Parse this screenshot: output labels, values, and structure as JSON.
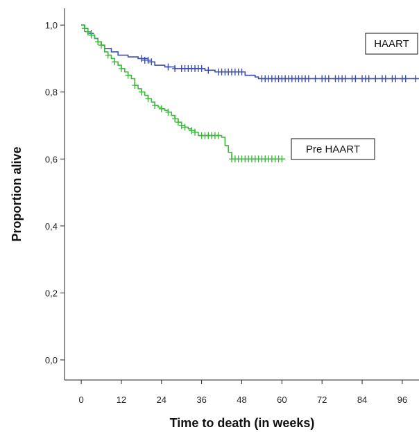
{
  "chart_data": {
    "type": "line",
    "title": "",
    "xlabel": "Time to death (in weeks)",
    "ylabel": "Proportion alive",
    "xlim": [
      -5,
      101
    ],
    "ylim": [
      -0.06,
      1.05
    ],
    "x_ticks": [
      0,
      12,
      24,
      36,
      48,
      60,
      72,
      84,
      96
    ],
    "x_tick_labels": [
      "0",
      "12",
      "24",
      "36",
      "48",
      "60",
      "72",
      "84",
      "96"
    ],
    "y_ticks": [
      0.0,
      0.2,
      0.4,
      0.6,
      0.8,
      1.0
    ],
    "y_tick_labels": [
      "0,0",
      "0,2",
      "0,4",
      "0,6",
      "0,8",
      "1,0"
    ],
    "grid": false,
    "series": [
      {
        "name": "HAART",
        "color": "#3c4fa8",
        "step": [
          [
            0,
            1.0
          ],
          [
            1,
            0.99
          ],
          [
            2,
            0.98
          ],
          [
            3,
            0.97
          ],
          [
            4,
            0.96
          ],
          [
            5,
            0.95
          ],
          [
            6,
            0.94
          ],
          [
            7,
            0.93
          ],
          [
            9,
            0.92
          ],
          [
            11,
            0.91
          ],
          [
            14,
            0.905
          ],
          [
            17,
            0.9
          ],
          [
            20,
            0.89
          ],
          [
            22,
            0.88
          ],
          [
            25,
            0.875
          ],
          [
            28,
            0.87
          ],
          [
            37,
            0.865
          ],
          [
            40,
            0.86
          ],
          [
            49,
            0.85
          ],
          [
            52,
            0.845
          ],
          [
            53,
            0.84
          ],
          [
            101,
            0.84
          ]
        ],
        "censored": [
          [
            1,
            0.99
          ],
          [
            2,
            0.98
          ],
          [
            3,
            0.975
          ],
          [
            18,
            0.9
          ],
          [
            19,
            0.895
          ],
          [
            20,
            0.895
          ],
          [
            21,
            0.89
          ],
          [
            26,
            0.875
          ],
          [
            28,
            0.87
          ],
          [
            30,
            0.87
          ],
          [
            31,
            0.87
          ],
          [
            32,
            0.87
          ],
          [
            33,
            0.87
          ],
          [
            34,
            0.87
          ],
          [
            35,
            0.87
          ],
          [
            36,
            0.87
          ],
          [
            38,
            0.865
          ],
          [
            41,
            0.86
          ],
          [
            42,
            0.86
          ],
          [
            43,
            0.86
          ],
          [
            44,
            0.86
          ],
          [
            45,
            0.86
          ],
          [
            46,
            0.86
          ],
          [
            47,
            0.86
          ],
          [
            48,
            0.86
          ],
          [
            54,
            0.84
          ],
          [
            55,
            0.84
          ],
          [
            56,
            0.84
          ],
          [
            57,
            0.84
          ],
          [
            58,
            0.84
          ],
          [
            59,
            0.84
          ],
          [
            60,
            0.84
          ],
          [
            61,
            0.84
          ],
          [
            62,
            0.84
          ],
          [
            63,
            0.84
          ],
          [
            64,
            0.84
          ],
          [
            65,
            0.84
          ],
          [
            66,
            0.84
          ],
          [
            67,
            0.84
          ],
          [
            68,
            0.84
          ],
          [
            70,
            0.84
          ],
          [
            72,
            0.84
          ],
          [
            73,
            0.84
          ],
          [
            74,
            0.84
          ],
          [
            76,
            0.84
          ],
          [
            77,
            0.84
          ],
          [
            78,
            0.84
          ],
          [
            79,
            0.84
          ],
          [
            81,
            0.84
          ],
          [
            82,
            0.84
          ],
          [
            84,
            0.84
          ],
          [
            85,
            0.84
          ],
          [
            86,
            0.84
          ],
          [
            88,
            0.84
          ],
          [
            90,
            0.84
          ],
          [
            91,
            0.84
          ],
          [
            93,
            0.84
          ],
          [
            94,
            0.84
          ],
          [
            96,
            0.84
          ],
          [
            97,
            0.84
          ],
          [
            100,
            0.84
          ]
        ]
      },
      {
        "name": "Pre HAART",
        "color": "#3cb83a",
        "step": [
          [
            0,
            1.0
          ],
          [
            1,
            0.99
          ],
          [
            2,
            0.98
          ],
          [
            3,
            0.97
          ],
          [
            4,
            0.96
          ],
          [
            5,
            0.95
          ],
          [
            6,
            0.94
          ],
          [
            7,
            0.92
          ],
          [
            8,
            0.91
          ],
          [
            9,
            0.9
          ],
          [
            10,
            0.89
          ],
          [
            11,
            0.88
          ],
          [
            12,
            0.87
          ],
          [
            13,
            0.86
          ],
          [
            14,
            0.85
          ],
          [
            15,
            0.84
          ],
          [
            16,
            0.82
          ],
          [
            17,
            0.81
          ],
          [
            18,
            0.8
          ],
          [
            19,
            0.79
          ],
          [
            20,
            0.78
          ],
          [
            21,
            0.77
          ],
          [
            22,
            0.76
          ],
          [
            23,
            0.755
          ],
          [
            24,
            0.75
          ],
          [
            25,
            0.745
          ],
          [
            26,
            0.74
          ],
          [
            27,
            0.73
          ],
          [
            28,
            0.72
          ],
          [
            29,
            0.71
          ],
          [
            30,
            0.7
          ],
          [
            31,
            0.695
          ],
          [
            32,
            0.69
          ],
          [
            33,
            0.685
          ],
          [
            34,
            0.68
          ],
          [
            35,
            0.67
          ],
          [
            42,
            0.665
          ],
          [
            43,
            0.64
          ],
          [
            44,
            0.62
          ],
          [
            45,
            0.6
          ],
          [
            61,
            0.6
          ]
        ],
        "censored": [
          [
            1,
            0.99
          ],
          [
            2,
            0.98
          ],
          [
            3,
            0.97
          ],
          [
            5,
            0.95
          ],
          [
            6,
            0.94
          ],
          [
            8,
            0.91
          ],
          [
            10,
            0.89
          ],
          [
            12,
            0.87
          ],
          [
            14,
            0.85
          ],
          [
            16,
            0.82
          ],
          [
            18,
            0.8
          ],
          [
            20,
            0.78
          ],
          [
            22,
            0.76
          ],
          [
            24,
            0.75
          ],
          [
            26,
            0.74
          ],
          [
            28,
            0.72
          ],
          [
            29,
            0.71
          ],
          [
            30,
            0.7
          ],
          [
            31,
            0.695
          ],
          [
            33,
            0.685
          ],
          [
            34,
            0.68
          ],
          [
            36,
            0.67
          ],
          [
            37,
            0.67
          ],
          [
            38,
            0.67
          ],
          [
            39,
            0.67
          ],
          [
            40,
            0.67
          ],
          [
            41,
            0.67
          ],
          [
            45,
            0.6
          ],
          [
            46,
            0.6
          ],
          [
            47,
            0.6
          ],
          [
            48,
            0.6
          ],
          [
            49,
            0.6
          ],
          [
            50,
            0.6
          ],
          [
            51,
            0.6
          ],
          [
            52,
            0.6
          ],
          [
            53,
            0.6
          ],
          [
            54,
            0.6
          ],
          [
            55,
            0.6
          ],
          [
            56,
            0.6
          ],
          [
            57,
            0.6
          ],
          [
            58,
            0.6
          ],
          [
            59,
            0.6
          ],
          [
            60,
            0.6
          ]
        ]
      }
    ]
  },
  "legend": {
    "haart_label": "HAART",
    "pre_haart_label": "Pre HAART"
  }
}
